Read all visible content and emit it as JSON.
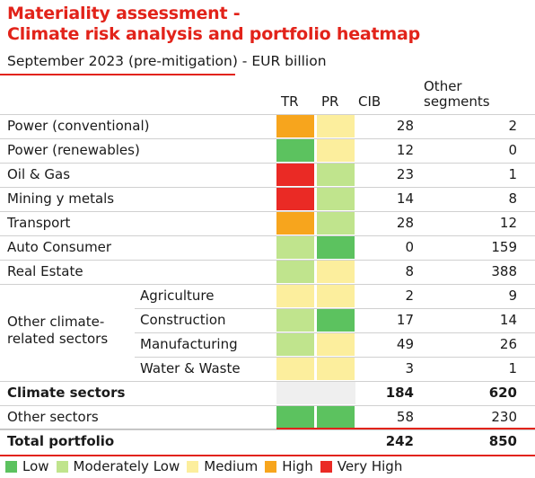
{
  "header": {
    "title_line1": "Materiality assessment -",
    "title_line2": "Climate risk analysis and portfolio heatmap",
    "subtitle": "September 2023 (pre-mitigation) - EUR billion"
  },
  "columns": {
    "tr": "TR",
    "pr": "PR",
    "cib": "CIB",
    "other_line1": "Other",
    "other_line2": "segments"
  },
  "colors": {
    "low": "#5cc25f",
    "moderately_low": "#c0e48d",
    "medium": "#fcee9d",
    "high": "#f7a51d",
    "very_high": "#ea2a25",
    "accent": "#e2231a",
    "summary_fill": "#efefef"
  },
  "rows": [
    {
      "label": "Power (conventional)",
      "tr": "high",
      "pr": "medium",
      "cib": "28",
      "other": "2"
    },
    {
      "label": "Power (renewables)",
      "tr": "low",
      "pr": "medium",
      "cib": "12",
      "other": "0"
    },
    {
      "label": "Oil & Gas",
      "tr": "very_high",
      "pr": "moderately_low",
      "cib": "23",
      "other": "1"
    },
    {
      "label": "Mining y metals",
      "tr": "very_high",
      "pr": "moderately_low",
      "cib": "14",
      "other": "8"
    },
    {
      "label": "Transport",
      "tr": "high",
      "pr": "moderately_low",
      "cib": "28",
      "other": "12"
    },
    {
      "label": "Auto Consumer",
      "tr": "moderately_low",
      "pr": "low",
      "cib": "0",
      "other": "159"
    },
    {
      "label": "Real Estate",
      "tr": "moderately_low",
      "pr": "medium",
      "cib": "8",
      "other": "388"
    }
  ],
  "group": {
    "label_line1": "Other climate-",
    "label_line2": "related sectors",
    "rows": [
      {
        "label": "Agriculture",
        "tr": "medium",
        "pr": "medium",
        "cib": "2",
        "other": "9"
      },
      {
        "label": "Construction",
        "tr": "moderately_low",
        "pr": "low",
        "cib": "17",
        "other": "14"
      },
      {
        "label": "Manufacturing",
        "tr": "moderately_low",
        "pr": "medium",
        "cib": "49",
        "other": "26"
      },
      {
        "label": "Water & Waste",
        "tr": "medium",
        "pr": "medium",
        "cib": "3",
        "other": "1"
      }
    ]
  },
  "summary": {
    "climate": {
      "label": "Climate sectors",
      "cib": "184",
      "other": "620"
    },
    "other_sectors": {
      "label": "Other sectors",
      "tr": "low",
      "pr": "low",
      "cib": "58",
      "other": "230"
    },
    "total": {
      "label": "Total portfolio",
      "cib": "242",
      "other": "850"
    }
  },
  "legend": [
    {
      "key": "low",
      "label": "Low"
    },
    {
      "key": "moderately_low",
      "label": "Moderately Low"
    },
    {
      "key": "medium",
      "label": "Medium"
    },
    {
      "key": "high",
      "label": "High"
    },
    {
      "key": "very_high",
      "label": "Very High"
    }
  ]
}
